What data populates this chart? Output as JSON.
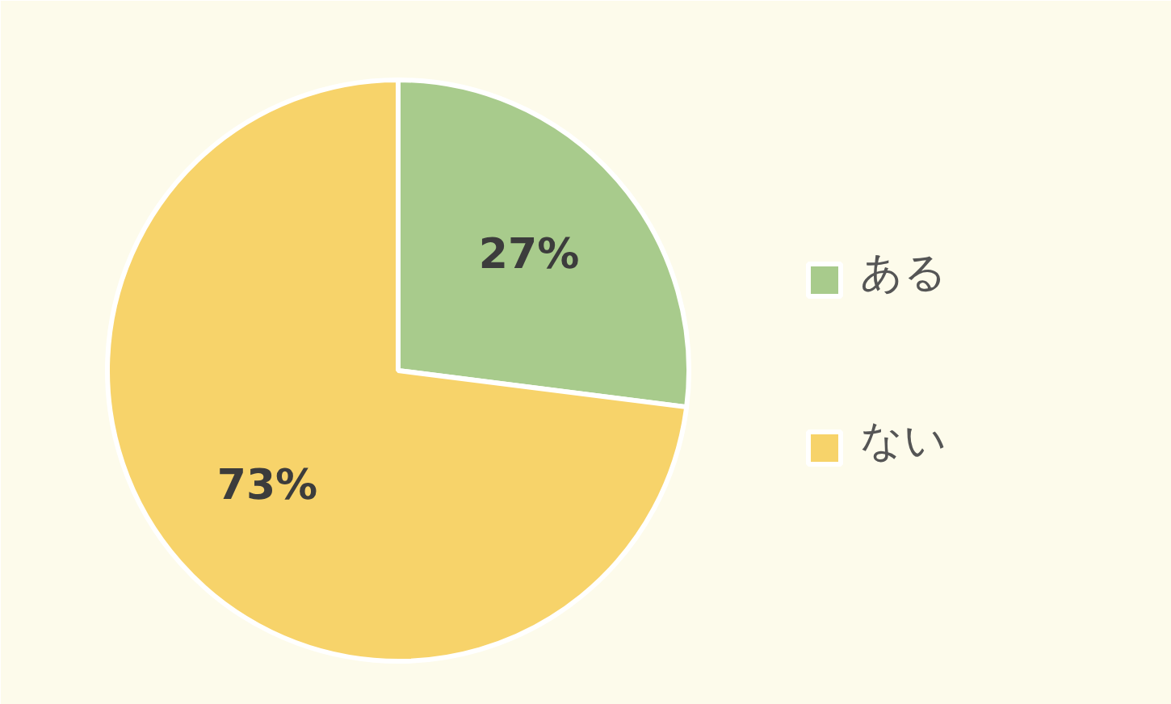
{
  "chart_data": {
    "type": "pie",
    "categories": [
      "ある",
      "ない"
    ],
    "values": [
      27,
      73
    ],
    "colors": [
      "#a8cb8c",
      "#f7d36a"
    ],
    "value_labels": [
      "27%",
      "73%"
    ],
    "legend": "right"
  }
}
